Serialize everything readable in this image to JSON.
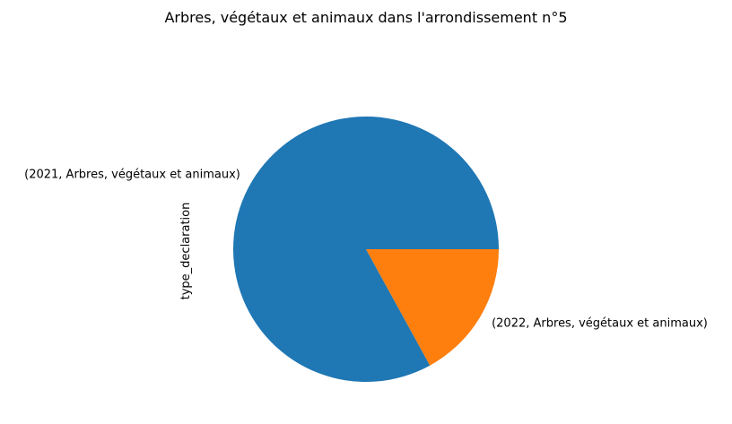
{
  "chart_data": {
    "type": "pie",
    "title": "Arbres, végétaux et animaux dans l'arrondissement n°5",
    "ylabel": "type_declaration",
    "labels": [
      "(2021, Arbres, végétaux et animaux)",
      "(2022, Arbres, végétaux et animaux)"
    ],
    "values": [
      83,
      17
    ],
    "colors": [
      "#1f77b4",
      "#ff7f0e"
    ],
    "start_angle_deg": 0,
    "direction": "counterclockwise",
    "legend": false
  }
}
